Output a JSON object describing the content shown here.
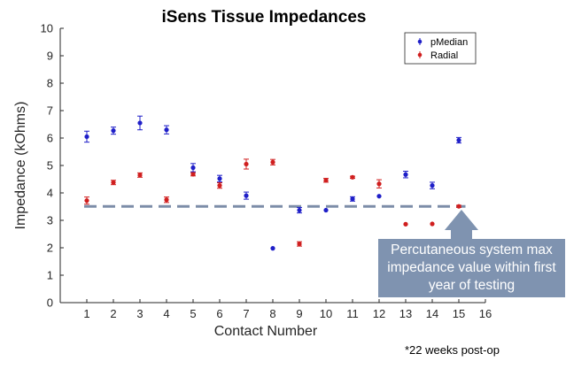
{
  "chart_data": {
    "type": "scatter",
    "title": "iSens Tissue Impedances",
    "xlabel": "Contact Number",
    "ylabel": "Impedance (kOhms)",
    "xlim": [
      0,
      16
    ],
    "ylim": [
      0,
      10
    ],
    "xticks": [
      "1",
      "2",
      "3",
      "4",
      "5",
      "6",
      "7",
      "8",
      "9",
      "10",
      "11",
      "12",
      "13",
      "14",
      "15",
      "16"
    ],
    "yticks": [
      "0",
      "1",
      "2",
      "3",
      "4",
      "5",
      "6",
      "7",
      "8",
      "9",
      "10"
    ],
    "grid": false,
    "legend_position": "top-right",
    "series": [
      {
        "name": "pMedian",
        "color": "#1f1fc8",
        "x": [
          1,
          2,
          3,
          4,
          5,
          6,
          7,
          8,
          9,
          10,
          11,
          12,
          13,
          14,
          15
        ],
        "y": [
          6.05,
          6.27,
          6.55,
          6.3,
          4.92,
          4.52,
          3.9,
          1.98,
          3.37,
          3.37,
          3.78,
          3.88,
          4.67,
          4.27,
          5.92
        ],
        "err": [
          0.2,
          0.13,
          0.25,
          0.15,
          0.15,
          0.12,
          0.13,
          0.0,
          0.1,
          0.0,
          0.08,
          0.0,
          0.12,
          0.12,
          0.1
        ]
      },
      {
        "name": "Radial",
        "color": "#d01f1f",
        "x": [
          1,
          2,
          3,
          4,
          5,
          6,
          7,
          8,
          9,
          10,
          11,
          12,
          13,
          14,
          15
        ],
        "y": [
          3.72,
          4.38,
          4.65,
          3.75,
          4.68,
          4.27,
          5.05,
          5.12,
          2.14,
          4.46,
          4.57,
          4.33,
          2.86,
          2.87,
          3.51
        ],
        "err": [
          0.13,
          0.08,
          0.08,
          0.1,
          0.06,
          0.1,
          0.18,
          0.1,
          0.08,
          0.07,
          0.04,
          0.15,
          0.0,
          0.0,
          0.04
        ]
      }
    ],
    "reference_line": {
      "y": 3.51,
      "color": "#7d8da8",
      "style": "dashed"
    },
    "annotation": "Percutaneous system max impedance value within first year of testing",
    "footnote": "*22 weeks post-op"
  }
}
